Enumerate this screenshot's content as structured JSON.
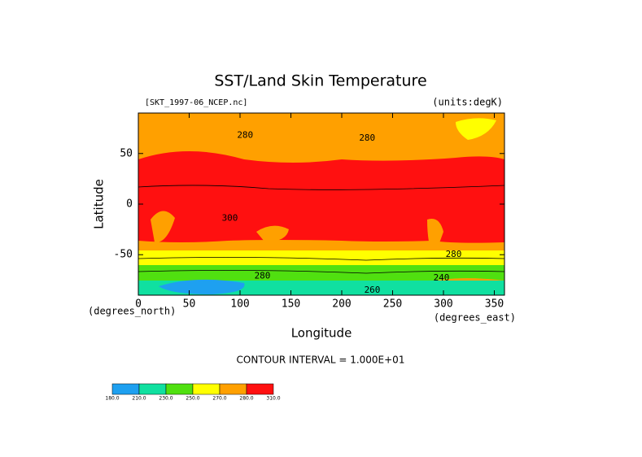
{
  "chart_data": {
    "type": "contour",
    "title": "SST/Land Skin Temperature",
    "source_label": "[SKT_1997-06_NCEP.nc]",
    "units_label": "(units:degK)",
    "x_label": "Longitude",
    "y_label": "Latitude",
    "x_units": "(degrees_east)",
    "y_units": "(degrees_north)",
    "xlim": [
      0,
      360
    ],
    "xticks": [
      0,
      50,
      100,
      150,
      200,
      250,
      300,
      350
    ],
    "ylim": [
      -90,
      90
    ],
    "yticks": [
      -50,
      0,
      50
    ],
    "footer": "CONTOUR INTERVAL = 1.000E+01",
    "contour_labels": [
      {
        "value": 280,
        "x": 105,
        "y": 68
      },
      {
        "value": 280,
        "x": 225,
        "y": 65
      },
      {
        "value": 300,
        "x": 90,
        "y": -14
      },
      {
        "value": 280,
        "x": 122,
        "y": -71
      },
      {
        "value": 280,
        "x": 310,
        "y": -50
      },
      {
        "value": 240,
        "x": 298,
        "y": -73
      },
      {
        "value": 260,
        "x": 230,
        "y": -85
      }
    ],
    "colorbar": {
      "levels": [
        {
          "value": 180,
          "label": "180.0"
        },
        {
          "value": 210,
          "label": "210.0"
        },
        {
          "value": 230,
          "label": "230.0"
        },
        {
          "value": 250,
          "label": "250.0"
        },
        {
          "value": 270,
          "label": "270.0"
        },
        {
          "value": 280,
          "label": "280.0"
        },
        {
          "value": 310,
          "label": "310.0"
        }
      ],
      "colors": [
        "#1ea0f0",
        "#10e0a0",
        "#50e010",
        "#ffff00",
        "#ffa000",
        "#ff1010"
      ]
    }
  }
}
